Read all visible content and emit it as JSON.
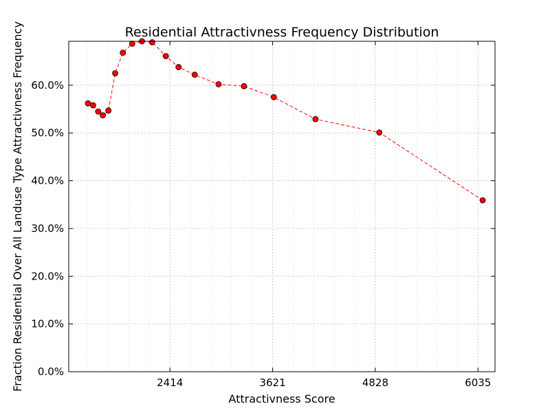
{
  "chart_data": {
    "type": "line",
    "title": "Residential Attractivness Frequency Distribution",
    "xlabel": "Attractivness Score",
    "ylabel": "Fraction Residential Over All Landuse Type Attractivness Frequency",
    "x_ticks": [
      2414,
      3621,
      4828,
      6035
    ],
    "x_tick_labels": [
      "2414",
      "3621",
      "4828",
      "6035"
    ],
    "y_ticks": [
      0,
      10,
      20,
      30,
      40,
      50,
      60
    ],
    "y_tick_labels": [
      "0.0%",
      "10.0%",
      "20.0%",
      "30.0%",
      "40.0%",
      "50.0%",
      "60.0%"
    ],
    "xlim": [
      1224,
      6235
    ],
    "ylim": [
      0,
      69.2
    ],
    "grid": true,
    "series": [
      {
        "color": "#ff0000",
        "line_style": "dashed",
        "marker": "circle",
        "x": [
          1450,
          1510,
          1570,
          1625,
          1690,
          1770,
          1860,
          1970,
          2085,
          2205,
          2365,
          2515,
          2705,
          2985,
          3285,
          3635,
          4125,
          4875,
          6090
        ],
        "y": [
          56.2,
          55.8,
          54.5,
          53.7,
          54.7,
          62.5,
          66.8,
          68.7,
          69.2,
          69.0,
          66.1,
          63.8,
          62.2,
          60.2,
          59.8,
          57.5,
          52.9,
          50.1,
          35.9
        ]
      }
    ]
  }
}
